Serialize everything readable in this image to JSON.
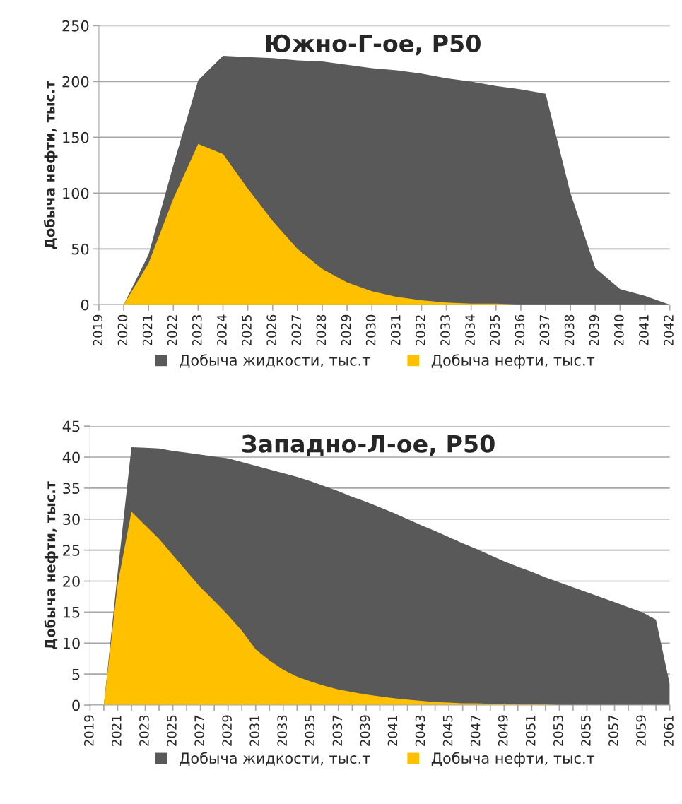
{
  "chart_data": [
    {
      "type": "area",
      "title": "Южно-Г-ое, P50",
      "ylabel": "Добыча нефти, тыс.т",
      "x": [
        2020,
        2021,
        2022,
        2023,
        2024,
        2025,
        2026,
        2027,
        2028,
        2029,
        2030,
        2031,
        2032,
        2033,
        2034,
        2035,
        2036,
        2037,
        2038,
        2039,
        2040,
        2041,
        2042
      ],
      "series": [
        {
          "name": "Добыча жидкости, тыс.т",
          "color": "#595959",
          "values": [
            0,
            45,
            125,
            201,
            223,
            222,
            221,
            219,
            218,
            215,
            212,
            210,
            207,
            203,
            200,
            196,
            193,
            189,
            100,
            33,
            14,
            8,
            0
          ]
        },
        {
          "name": "Добыча нефти, тыс.т",
          "color": "#ffc000",
          "values": [
            0,
            37,
            95,
            144,
            135,
            104,
            75,
            50,
            32,
            20,
            12,
            7,
            4,
            2,
            1,
            1,
            0,
            0,
            0,
            0,
            0,
            0,
            0
          ]
        }
      ],
      "xlim": [
        2019,
        2042
      ],
      "xticks": [
        2019,
        2020,
        2021,
        2022,
        2023,
        2024,
        2025,
        2026,
        2027,
        2028,
        2029,
        2030,
        2031,
        2032,
        2033,
        2034,
        2035,
        2036,
        2037,
        2038,
        2039,
        2040,
        2041,
        2042
      ],
      "ylim": [
        0,
        250
      ],
      "yticks": [
        0,
        50,
        100,
        150,
        200,
        250
      ],
      "grid": "y",
      "legend": "bottom"
    },
    {
      "type": "area",
      "title": "Западно-Л-ое, P50",
      "ylabel": "Добыча нефти, тыс.т",
      "x": [
        2020,
        2021,
        2022,
        2023,
        2024,
        2025,
        2026,
        2027,
        2028,
        2029,
        2030,
        2031,
        2032,
        2033,
        2034,
        2035,
        2036,
        2037,
        2038,
        2039,
        2040,
        2041,
        2042,
        2043,
        2044,
        2045,
        2046,
        2047,
        2048,
        2049,
        2050,
        2051,
        2052,
        2053,
        2054,
        2055,
        2056,
        2057,
        2058,
        2059,
        2060,
        2061
      ],
      "series": [
        {
          "name": "Добыча жидкости, тыс.т",
          "color": "#595959",
          "values": [
            0,
            21.3,
            41.6,
            41.5,
            41.4,
            41.0,
            40.7,
            40.4,
            40.1,
            39.8,
            39.2,
            38.6,
            38.0,
            37.4,
            36.8,
            36.1,
            35.3,
            34.5,
            33.6,
            32.8,
            31.9,
            31.0,
            30.0,
            29.0,
            28.1,
            27.1,
            26.1,
            25.2,
            24.2,
            23.2,
            22.3,
            21.5,
            20.6,
            19.8,
            19.0,
            18.2,
            17.4,
            16.6,
            15.8,
            15.0,
            13.8,
            3.4
          ]
        },
        {
          "name": "Добыча нефти, тыс.т",
          "color": "#ffc000",
          "values": [
            0,
            19.5,
            31.2,
            29.0,
            26.8,
            24.2,
            21.6,
            19.0,
            16.8,
            14.5,
            12.0,
            9.0,
            7.2,
            5.7,
            4.6,
            3.8,
            3.1,
            2.5,
            2.1,
            1.7,
            1.4,
            1.1,
            0.9,
            0.7,
            0.5,
            0.4,
            0.3,
            0.3,
            0.2,
            0.2,
            0.1,
            0.1,
            0.1,
            0,
            0,
            0,
            0,
            0,
            0,
            0,
            0,
            0
          ]
        }
      ],
      "xlim": [
        2019,
        2061
      ],
      "xticks": [
        2019,
        {
          "value": 2020,
          "label": null
        },
        2021,
        {
          "value": 2022,
          "label": null
        },
        2023,
        {
          "value": 2024,
          "label": null
        },
        2025,
        {
          "value": 2026,
          "label": null
        },
        2027,
        {
          "value": 2028,
          "label": null
        },
        2029,
        {
          "value": 2030,
          "label": null
        },
        2031,
        {
          "value": 2032,
          "label": null
        },
        2033,
        {
          "value": 2034,
          "label": null
        },
        2035,
        {
          "value": 2036,
          "label": null
        },
        2037,
        {
          "value": 2038,
          "label": null
        },
        2039,
        {
          "value": 2040,
          "label": null
        },
        2041,
        {
          "value": 2042,
          "label": null
        },
        2043,
        {
          "value": 2044,
          "label": null
        },
        2045,
        {
          "value": 2046,
          "label": null
        },
        2047,
        {
          "value": 2048,
          "label": null
        },
        2049,
        {
          "value": 2050,
          "label": null
        },
        2051,
        {
          "value": 2052,
          "label": null
        },
        2053,
        {
          "value": 2054,
          "label": null
        },
        2055,
        {
          "value": 2056,
          "label": null
        },
        2057,
        {
          "value": 2058,
          "label": null
        },
        2059,
        {
          "value": 2060,
          "label": null
        },
        2061
      ],
      "ylim": [
        0,
        45
      ],
      "yticks": [
        0,
        5,
        10,
        15,
        20,
        25,
        30,
        35,
        40,
        45
      ],
      "grid": "y",
      "legend": "bottom"
    }
  ]
}
